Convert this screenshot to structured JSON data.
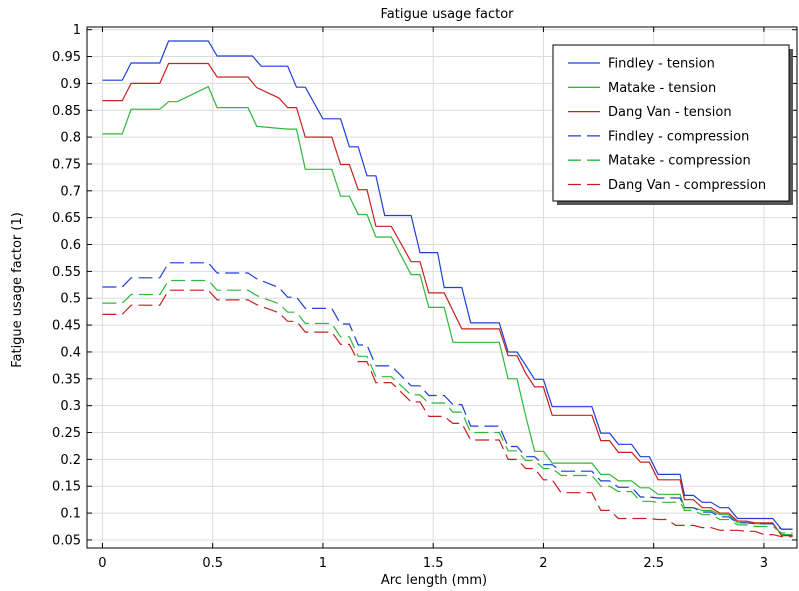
{
  "chart_data": {
    "type": "line",
    "title": "Fatigue usage factor",
    "xlabel": "Arc length (mm)",
    "ylabel": "Fatigue usage factor (1)",
    "xlim": [
      -0.07,
      3.15
    ],
    "ylim": [
      0.035,
      1.005
    ],
    "xticks": [
      0,
      0.5,
      1,
      1.5,
      2,
      2.5,
      3
    ],
    "xtick_labels": [
      "0",
      "0.5",
      "1",
      "1.5",
      "2",
      "2.5",
      "3"
    ],
    "yticks": [
      0.05,
      0.1,
      0.15,
      0.2,
      0.25,
      0.3,
      0.35,
      0.4,
      0.45,
      0.5,
      0.55,
      0.6,
      0.65,
      0.7,
      0.75,
      0.8,
      0.85,
      0.9,
      0.95,
      1
    ],
    "ytick_labels": [
      "0.05",
      "0.1",
      "0.15",
      "0.2",
      "0.25",
      "0.3",
      "0.35",
      "0.4",
      "0.45",
      "0.5",
      "0.55",
      "0.6",
      "0.65",
      "0.7",
      "0.75",
      "0.8",
      "0.85",
      "0.9",
      "0.95",
      "1"
    ],
    "grid": true,
    "legend_position": "top-right",
    "series": [
      {
        "name": "Findley - tension",
        "color": "#1f3fd6",
        "dash": "solid",
        "x": [
          0,
          0.09,
          0.13,
          0.26,
          0.3,
          0.48,
          0.52,
          0.68,
          0.72,
          0.84,
          0.88,
          0.92,
          1.0,
          1.04,
          1.08,
          1.12,
          1.16,
          1.2,
          1.24,
          1.28,
          1.31,
          1.4,
          1.44,
          1.52,
          1.55,
          1.63,
          1.67,
          1.7,
          1.74,
          1.8,
          1.84,
          1.88,
          1.92,
          1.96,
          2.0,
          2.04,
          2.08,
          2.22,
          2.26,
          2.3,
          2.34,
          2.4,
          2.44,
          2.48,
          2.52,
          2.56,
          2.6,
          2.62,
          2.64,
          2.68,
          2.72,
          2.76,
          2.8,
          2.84,
          2.88,
          2.92,
          2.96,
          3.0,
          3.04,
          3.08,
          3.13
        ],
        "y": [
          0.906,
          0.906,
          0.938,
          0.938,
          0.979,
          0.979,
          0.951,
          0.951,
          0.932,
          0.932,
          0.893,
          0.893,
          0.834,
          0.834,
          0.834,
          0.782,
          0.782,
          0.728,
          0.728,
          0.654,
          0.654,
          0.654,
          0.585,
          0.585,
          0.52,
          0.52,
          0.454,
          0.454,
          0.454,
          0.454,
          0.4,
          0.4,
          0.375,
          0.349,
          0.349,
          0.298,
          0.298,
          0.298,
          0.249,
          0.249,
          0.228,
          0.228,
          0.205,
          0.205,
          0.172,
          0.172,
          0.172,
          0.172,
          0.133,
          0.133,
          0.12,
          0.12,
          0.11,
          0.11,
          0.09,
          0.09,
          0.09,
          0.09,
          0.09,
          0.07,
          0.07
        ]
      },
      {
        "name": "Matake - tension",
        "color": "#2fb83a",
        "dash": "solid",
        "x": [
          0,
          0.09,
          0.13,
          0.26,
          0.3,
          0.34,
          0.48,
          0.52,
          0.66,
          0.7,
          0.84,
          0.88,
          0.92,
          1.0,
          1.04,
          1.08,
          1.12,
          1.16,
          1.2,
          1.24,
          1.28,
          1.31,
          1.4,
          1.44,
          1.48,
          1.52,
          1.55,
          1.59,
          1.63,
          1.67,
          1.7,
          1.74,
          1.8,
          1.84,
          1.88,
          1.92,
          1.96,
          2.0,
          2.04,
          2.08,
          2.22,
          2.26,
          2.3,
          2.34,
          2.4,
          2.44,
          2.48,
          2.52,
          2.56,
          2.6,
          2.62,
          2.64,
          2.68,
          2.72,
          2.76,
          2.8,
          2.84,
          2.88,
          2.92,
          2.96,
          3.0,
          3.04,
          3.08,
          3.13
        ],
        "y": [
          0.806,
          0.806,
          0.852,
          0.852,
          0.866,
          0.866,
          0.894,
          0.855,
          0.855,
          0.82,
          0.815,
          0.815,
          0.74,
          0.74,
          0.74,
          0.69,
          0.69,
          0.656,
          0.656,
          0.614,
          0.614,
          0.614,
          0.544,
          0.544,
          0.483,
          0.483,
          0.483,
          0.418,
          0.418,
          0.418,
          0.418,
          0.418,
          0.418,
          0.35,
          0.35,
          0.28,
          0.215,
          0.215,
          0.193,
          0.193,
          0.193,
          0.172,
          0.172,
          0.16,
          0.16,
          0.147,
          0.147,
          0.135,
          0.135,
          0.135,
          0.135,
          0.11,
          0.11,
          0.105,
          0.105,
          0.097,
          0.097,
          0.082,
          0.082,
          0.08,
          0.08,
          0.08,
          0.06,
          0.06
        ]
      },
      {
        "name": "Dang Van - tension",
        "color": "#c8201e",
        "dash": "solid",
        "x": [
          0,
          0.09,
          0.13,
          0.26,
          0.3,
          0.48,
          0.52,
          0.66,
          0.7,
          0.8,
          0.84,
          0.88,
          0.92,
          1.0,
          1.04,
          1.08,
          1.12,
          1.16,
          1.2,
          1.24,
          1.28,
          1.31,
          1.4,
          1.44,
          1.48,
          1.52,
          1.55,
          1.63,
          1.67,
          1.7,
          1.74,
          1.8,
          1.84,
          1.88,
          1.92,
          1.96,
          2.0,
          2.04,
          2.08,
          2.22,
          2.26,
          2.3,
          2.34,
          2.4,
          2.44,
          2.48,
          2.52,
          2.56,
          2.6,
          2.62,
          2.64,
          2.68,
          2.72,
          2.76,
          2.8,
          2.84,
          2.88,
          2.92,
          2.96,
          3.0,
          3.04,
          3.08,
          3.13
        ],
        "y": [
          0.868,
          0.868,
          0.9,
          0.9,
          0.937,
          0.937,
          0.912,
          0.912,
          0.892,
          0.873,
          0.855,
          0.855,
          0.8,
          0.8,
          0.8,
          0.749,
          0.749,
          0.702,
          0.702,
          0.634,
          0.634,
          0.634,
          0.568,
          0.568,
          0.51,
          0.51,
          0.51,
          0.443,
          0.443,
          0.443,
          0.443,
          0.443,
          0.393,
          0.393,
          0.36,
          0.335,
          0.335,
          0.282,
          0.282,
          0.282,
          0.235,
          0.235,
          0.213,
          0.213,
          0.195,
          0.195,
          0.162,
          0.162,
          0.162,
          0.162,
          0.125,
          0.125,
          0.11,
          0.11,
          0.1,
          0.1,
          0.085,
          0.085,
          0.082,
          0.082,
          0.082,
          0.058,
          0.058
        ]
      },
      {
        "name": "Findley - compression",
        "color": "#1f3fd6",
        "dash": "dashed",
        "x": [
          0,
          0.09,
          0.13,
          0.26,
          0.3,
          0.48,
          0.52,
          0.66,
          0.7,
          0.8,
          0.84,
          0.88,
          0.92,
          1.0,
          1.04,
          1.08,
          1.12,
          1.16,
          1.2,
          1.24,
          1.28,
          1.31,
          1.4,
          1.44,
          1.48,
          1.52,
          1.55,
          1.59,
          1.63,
          1.67,
          1.7,
          1.74,
          1.8,
          1.84,
          1.88,
          1.92,
          1.96,
          2.0,
          2.04,
          2.08,
          2.22,
          2.26,
          2.3,
          2.34,
          2.4,
          2.44,
          2.48,
          2.52,
          2.56,
          2.6,
          2.62,
          2.64,
          2.68,
          2.72,
          2.76,
          2.8,
          2.84,
          2.88,
          2.92,
          2.96,
          3.0,
          3.04,
          3.08,
          3.13
        ],
        "y": [
          0.521,
          0.521,
          0.538,
          0.538,
          0.566,
          0.566,
          0.547,
          0.547,
          0.536,
          0.52,
          0.502,
          0.502,
          0.481,
          0.481,
          0.481,
          0.452,
          0.452,
          0.413,
          0.413,
          0.374,
          0.374,
          0.374,
          0.337,
          0.337,
          0.319,
          0.319,
          0.319,
          0.302,
          0.302,
          0.262,
          0.262,
          0.262,
          0.262,
          0.224,
          0.224,
          0.205,
          0.205,
          0.19,
          0.19,
          0.178,
          0.178,
          0.16,
          0.16,
          0.148,
          0.148,
          0.13,
          0.13,
          0.128,
          0.128,
          0.128,
          0.128,
          0.11,
          0.11,
          0.102,
          0.102,
          0.093,
          0.093,
          0.082,
          0.082,
          0.08,
          0.08,
          0.08,
          0.07,
          0.07
        ]
      },
      {
        "name": "Matake - compression",
        "color": "#2fb83a",
        "dash": "dashed",
        "x": [
          0,
          0.09,
          0.13,
          0.26,
          0.3,
          0.48,
          0.52,
          0.66,
          0.7,
          0.8,
          0.84,
          0.88,
          0.92,
          1.0,
          1.04,
          1.08,
          1.12,
          1.16,
          1.2,
          1.24,
          1.28,
          1.31,
          1.4,
          1.44,
          1.48,
          1.52,
          1.55,
          1.59,
          1.63,
          1.67,
          1.7,
          1.74,
          1.8,
          1.84,
          1.88,
          1.92,
          1.96,
          2.0,
          2.04,
          2.08,
          2.22,
          2.26,
          2.3,
          2.34,
          2.4,
          2.44,
          2.48,
          2.52,
          2.56,
          2.6,
          2.62,
          2.64,
          2.68,
          2.72,
          2.76,
          2.8,
          2.84,
          2.88,
          2.92,
          2.96,
          3.0,
          3.04,
          3.08,
          3.13
        ],
        "y": [
          0.491,
          0.491,
          0.507,
          0.507,
          0.533,
          0.533,
          0.515,
          0.515,
          0.505,
          0.49,
          0.474,
          0.474,
          0.453,
          0.453,
          0.453,
          0.428,
          0.428,
          0.392,
          0.392,
          0.354,
          0.354,
          0.354,
          0.32,
          0.32,
          0.305,
          0.305,
          0.305,
          0.288,
          0.288,
          0.25,
          0.25,
          0.25,
          0.25,
          0.216,
          0.216,
          0.198,
          0.198,
          0.183,
          0.183,
          0.17,
          0.17,
          0.15,
          0.15,
          0.14,
          0.14,
          0.122,
          0.122,
          0.12,
          0.12,
          0.12,
          0.12,
          0.105,
          0.105,
          0.097,
          0.097,
          0.088,
          0.088,
          0.078,
          0.078,
          0.075,
          0.075,
          0.075,
          0.063,
          0.063
        ]
      },
      {
        "name": "Dang Van - compression",
        "color": "#c8201e",
        "dash": "dashed",
        "x": [
          0,
          0.09,
          0.13,
          0.26,
          0.3,
          0.48,
          0.52,
          0.66,
          0.7,
          0.8,
          0.84,
          0.88,
          0.92,
          1.0,
          1.04,
          1.08,
          1.12,
          1.16,
          1.2,
          1.24,
          1.28,
          1.31,
          1.4,
          1.44,
          1.48,
          1.52,
          1.55,
          1.59,
          1.63,
          1.67,
          1.7,
          1.74,
          1.8,
          1.84,
          1.88,
          1.92,
          1.96,
          2.0,
          2.04,
          2.08,
          2.22,
          2.26,
          2.3,
          2.34,
          2.48,
          2.52,
          2.56,
          2.6,
          2.62,
          2.64,
          2.68,
          2.72,
          2.76,
          2.8,
          2.84,
          2.88,
          2.92,
          2.96,
          3.0,
          3.04,
          3.08,
          3.13
        ],
        "y": [
          0.47,
          0.47,
          0.487,
          0.487,
          0.515,
          0.515,
          0.497,
          0.497,
          0.488,
          0.473,
          0.457,
          0.457,
          0.437,
          0.437,
          0.437,
          0.414,
          0.414,
          0.382,
          0.382,
          0.343,
          0.343,
          0.343,
          0.307,
          0.307,
          0.28,
          0.28,
          0.28,
          0.267,
          0.267,
          0.236,
          0.236,
          0.236,
          0.236,
          0.2,
          0.2,
          0.183,
          0.183,
          0.162,
          0.162,
          0.138,
          0.138,
          0.105,
          0.105,
          0.09,
          0.09,
          0.088,
          0.088,
          0.077,
          0.077,
          0.077,
          0.077,
          0.073,
          0.073,
          0.068,
          0.068,
          0.068,
          0.066,
          0.066,
          0.06,
          0.06,
          0.056,
          0.056
        ]
      }
    ]
  }
}
